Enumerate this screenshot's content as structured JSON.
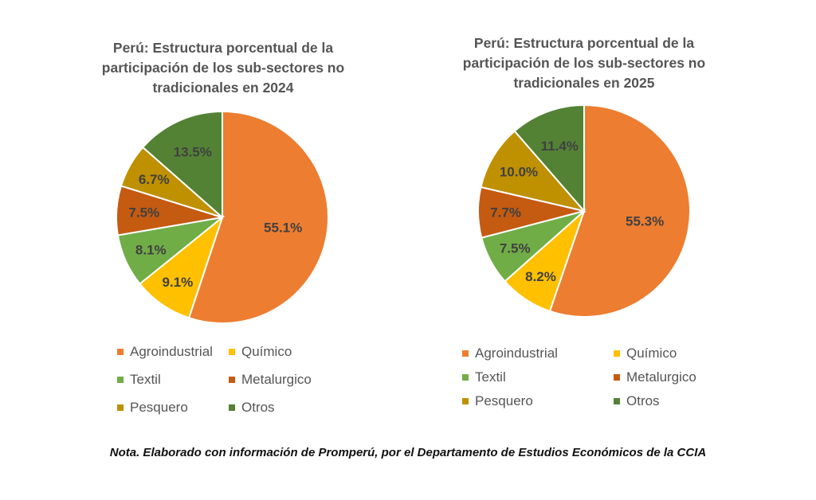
{
  "colors": {
    "Agroindustrial": "#ED7D31",
    "Químico": "#FFC000",
    "Textil": "#70AD47",
    "Metalurgico": "#C55A11",
    "Pesquero": "#BF9000",
    "Otros": "#548235"
  },
  "chart_data": [
    {
      "type": "pie",
      "title": "Perú: Estructura porcentual de la participación de los sub-sectores no tradicionales en 2024",
      "title_lines": [
        "Perú: Estructura porcentual de la",
        "participación de los sub-sectores no",
        "tradicionales en 2024"
      ],
      "categories": [
        "Agroindustrial",
        "Químico",
        "Textil",
        "Metalurgico",
        "Pesquero",
        "Otros"
      ],
      "values": [
        55.1,
        9.1,
        8.1,
        7.5,
        6.7,
        13.5
      ],
      "labels": [
        "55.1%",
        "9.1%",
        "8.1%",
        "7.5%",
        "6.7%",
        "13.5%"
      ],
      "legend": [
        "Agroindustrial",
        "Químico",
        "Textil",
        "Metalurgico",
        "Pesquero",
        "Otros"
      ]
    },
    {
      "type": "pie",
      "title": "Perú: Estructura porcentual de la participación de los sub-sectores no tradicionales en 2025",
      "title_lines": [
        "Perú: Estructura porcentual de la",
        "participación de los sub-sectores no",
        "tradicionales en 2025"
      ],
      "categories": [
        "Agroindustrial",
        "Químico",
        "Textil",
        "Metalurgico",
        "Pesquero",
        "Otros"
      ],
      "values": [
        55.3,
        8.2,
        7.5,
        7.7,
        10.0,
        11.4
      ],
      "labels": [
        "55.3%",
        "8.2%",
        "7.5%",
        "7.7%",
        "10.0%",
        "11.4%"
      ],
      "legend": [
        "Agroindustrial",
        "Químico",
        "Textil",
        "Metalurgico",
        "Pesquero",
        "Otros"
      ]
    }
  ],
  "note": "Nota. Elaborado con información de Promperú, por el Departamento de Estudios Económicos de la CCIA"
}
